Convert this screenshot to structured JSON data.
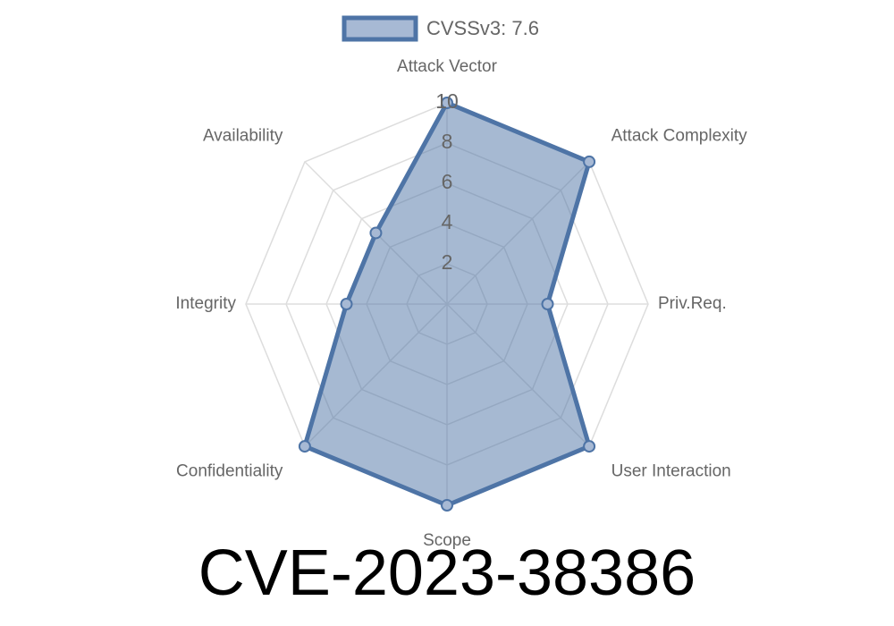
{
  "chart_data": {
    "type": "radar",
    "title": "CVE-2023-38386",
    "categories": [
      "Attack Vector",
      "Attack Complexity",
      "Priv.Req.",
      "User Interaction",
      "Scope",
      "Confidentiality",
      "Integrity",
      "Availability"
    ],
    "series": [
      {
        "name": "CVSSv3: 7.6",
        "color": "#4e74a6",
        "values": [
          10,
          10,
          5,
          10,
          10,
          10,
          5,
          5
        ]
      }
    ],
    "rlim": [
      0,
      10
    ],
    "rticks": [
      2,
      4,
      6,
      8,
      10
    ],
    "grid": true
  }
}
